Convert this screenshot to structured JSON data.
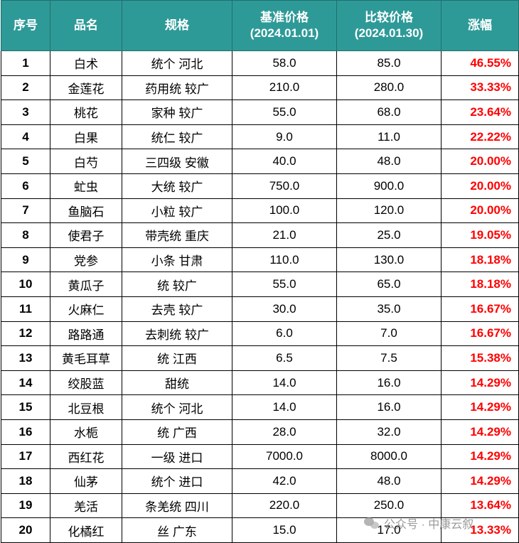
{
  "table": {
    "headers": {
      "index": "序号",
      "name": "品名",
      "spec": "规格",
      "base_price_line1": "基准价格",
      "base_price_line2": "(2024.01.01)",
      "compare_price_line1": "比较价格",
      "compare_price_line2": "(2024.01.30)",
      "change": "涨幅"
    },
    "rows": [
      {
        "index": "1",
        "name": "白术",
        "spec": "统个 河北",
        "base": "58.0",
        "compare": "85.0",
        "change": "46.55%"
      },
      {
        "index": "2",
        "name": "金莲花",
        "spec": "药用统 较广",
        "base": "210.0",
        "compare": "280.0",
        "change": "33.33%"
      },
      {
        "index": "3",
        "name": "桃花",
        "spec": "家种 较广",
        "base": "55.0",
        "compare": "68.0",
        "change": "23.64%"
      },
      {
        "index": "4",
        "name": "白果",
        "spec": "统仁 较广",
        "base": "9.0",
        "compare": "11.0",
        "change": "22.22%"
      },
      {
        "index": "5",
        "name": "白芍",
        "spec": "三四级 安徽",
        "base": "40.0",
        "compare": "48.0",
        "change": "20.00%"
      },
      {
        "index": "6",
        "name": "虻虫",
        "spec": "大统 较广",
        "base": "750.0",
        "compare": "900.0",
        "change": "20.00%"
      },
      {
        "index": "7",
        "name": "鱼脑石",
        "spec": "小粒 较广",
        "base": "100.0",
        "compare": "120.0",
        "change": "20.00%"
      },
      {
        "index": "8",
        "name": "使君子",
        "spec": "带壳统 重庆",
        "base": "21.0",
        "compare": "25.0",
        "change": "19.05%"
      },
      {
        "index": "9",
        "name": "党参",
        "spec": "小条 甘肃",
        "base": "110.0",
        "compare": "130.0",
        "change": "18.18%"
      },
      {
        "index": "10",
        "name": "黄瓜子",
        "spec": "统 较广",
        "base": "55.0",
        "compare": "65.0",
        "change": "18.18%"
      },
      {
        "index": "11",
        "name": "火麻仁",
        "spec": "去壳 较广",
        "base": "30.0",
        "compare": "35.0",
        "change": "16.67%"
      },
      {
        "index": "12",
        "name": "路路通",
        "spec": "去刺统 较广",
        "base": "6.0",
        "compare": "7.0",
        "change": "16.67%"
      },
      {
        "index": "13",
        "name": "黄毛耳草",
        "spec": "统 江西",
        "base": "6.5",
        "compare": "7.5",
        "change": "15.38%"
      },
      {
        "index": "14",
        "name": "绞股蓝",
        "spec": "甜统",
        "base": "14.0",
        "compare": "16.0",
        "change": "14.29%"
      },
      {
        "index": "15",
        "name": "北豆根",
        "spec": "统个 河北",
        "base": "14.0",
        "compare": "16.0",
        "change": "14.29%"
      },
      {
        "index": "16",
        "name": "水栀",
        "spec": "统 广西",
        "base": "28.0",
        "compare": "32.0",
        "change": "14.29%"
      },
      {
        "index": "17",
        "name": "西红花",
        "spec": "一级 进口",
        "base": "7000.0",
        "compare": "8000.0",
        "change": "14.29%"
      },
      {
        "index": "18",
        "name": "仙茅",
        "spec": "统个 进口",
        "base": "42.0",
        "compare": "48.0",
        "change": "14.29%"
      },
      {
        "index": "19",
        "name": "羌活",
        "spec": "条羌统 四川",
        "base": "220.0",
        "compare": "250.0",
        "change": "13.64%"
      },
      {
        "index": "20",
        "name": "化橘红",
        "spec": "丝 广东",
        "base": "15.0",
        "compare": "17.0",
        "change": "13.33%"
      }
    ]
  },
  "watermark": {
    "text": "公众号 · 中康云叙",
    "icon": "wechat-icon"
  },
  "colors": {
    "header_bg": "#2e9a98",
    "header_text": "#ffffff",
    "change_text": "#ff0000"
  }
}
